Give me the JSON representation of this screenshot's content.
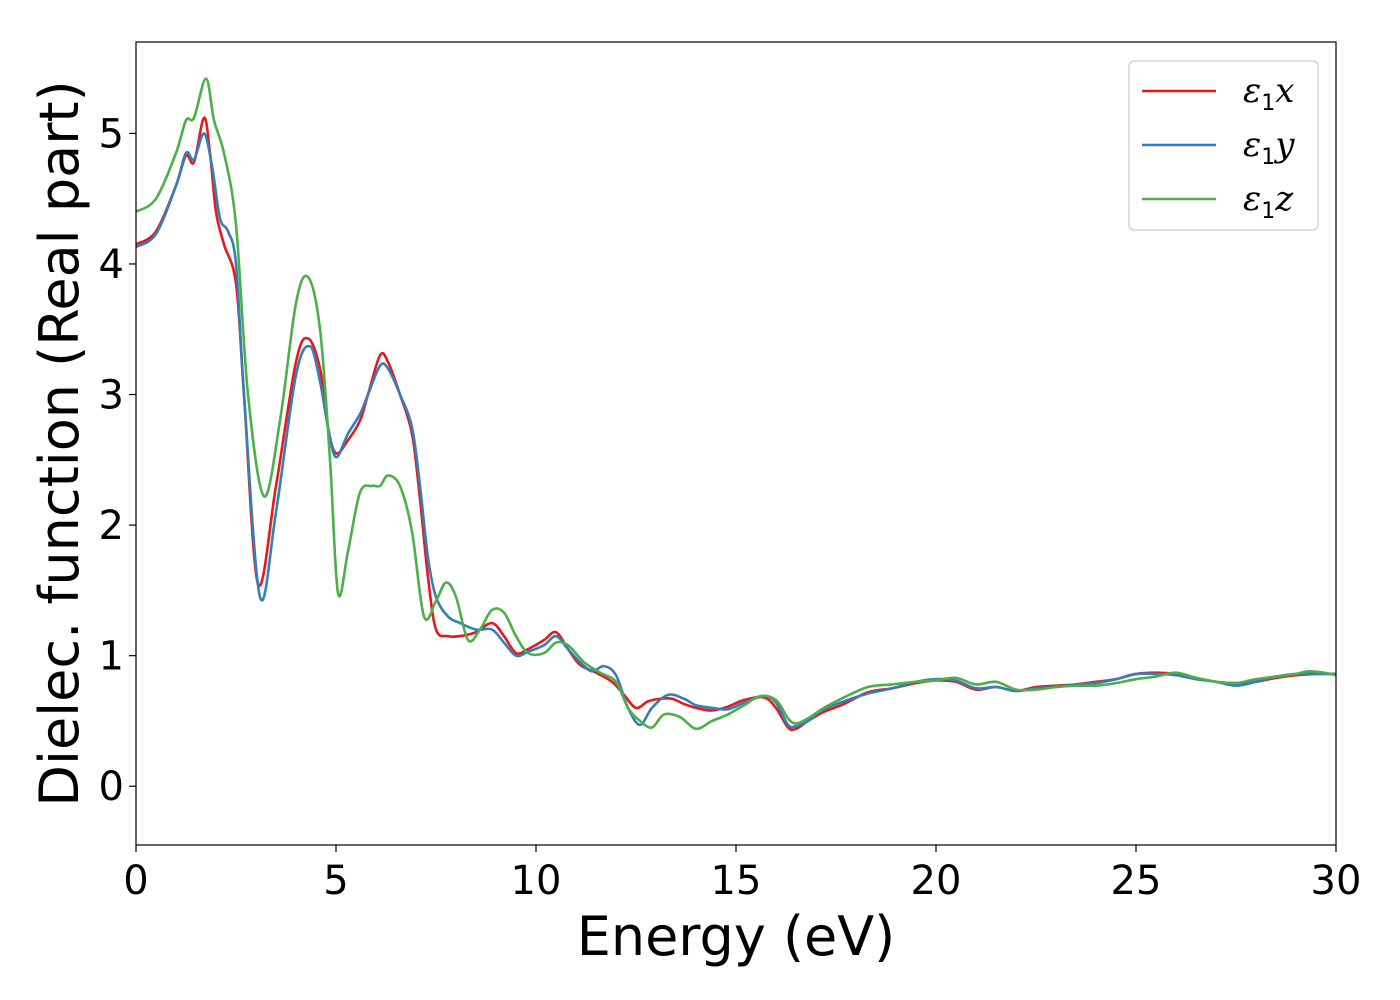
{
  "chart_data": {
    "type": "line",
    "title": "",
    "xlabel": "Energy (eV)",
    "ylabel": "Dielec. function (Real part)",
    "xlim": [
      0,
      30
    ],
    "ylim": [
      -0.45,
      5.7
    ],
    "xticks": [
      0,
      5,
      10,
      15,
      20,
      25,
      30
    ],
    "yticks": [
      0,
      1,
      2,
      3,
      4,
      5
    ],
    "grid": false,
    "legend_position": "top-right",
    "series": [
      {
        "name": "ε1x",
        "legend": {
          "base": "ε",
          "sub": "1",
          "var": "x"
        },
        "color": "#e41a1c",
        "x": [
          0,
          0.5,
          1.0,
          1.25,
          1.45,
          1.7,
          1.85,
          2.0,
          2.2,
          2.5,
          2.7,
          3.05,
          3.5,
          4.0,
          4.3,
          4.6,
          4.8,
          5.0,
          5.3,
          5.6,
          5.8,
          6.1,
          6.3,
          6.6,
          6.9,
          7.1,
          7.3,
          7.5,
          7.8,
          8.1,
          8.5,
          8.9,
          9.2,
          9.5,
          9.8,
          10.2,
          10.5,
          10.8,
          11.1,
          11.5,
          11.9,
          12.2,
          12.5,
          12.8,
          13.1,
          13.4,
          13.7,
          14.0,
          14.4,
          14.8,
          15.2,
          15.7,
          16.0,
          16.3,
          16.5,
          16.8,
          17.2,
          17.7,
          18.3,
          18.9,
          19.5,
          20.0,
          20.5,
          21.0,
          21.5,
          22.0,
          22.5,
          23.0,
          23.5,
          24.0,
          24.5,
          25.0,
          25.5,
          26.0,
          26.5,
          27.0,
          27.5,
          28.0,
          28.5,
          29.0,
          29.5,
          30.0
        ],
        "y": [
          4.15,
          4.25,
          4.6,
          4.83,
          4.78,
          5.12,
          4.85,
          4.4,
          4.15,
          3.85,
          3.0,
          1.55,
          2.3,
          3.25,
          3.43,
          3.2,
          2.75,
          2.55,
          2.65,
          2.8,
          3.0,
          3.3,
          3.25,
          3.0,
          2.7,
          2.2,
          1.6,
          1.2,
          1.15,
          1.15,
          1.18,
          1.25,
          1.15,
          1.02,
          1.05,
          1.12,
          1.18,
          1.05,
          0.93,
          0.87,
          0.8,
          0.7,
          0.6,
          0.65,
          0.67,
          0.67,
          0.63,
          0.6,
          0.58,
          0.61,
          0.66,
          0.68,
          0.6,
          0.45,
          0.44,
          0.5,
          0.57,
          0.63,
          0.72,
          0.75,
          0.79,
          0.81,
          0.8,
          0.74,
          0.76,
          0.73,
          0.76,
          0.77,
          0.78,
          0.8,
          0.82,
          0.86,
          0.87,
          0.86,
          0.83,
          0.8,
          0.79,
          0.8,
          0.83,
          0.85,
          0.86,
          0.86
        ]
      },
      {
        "name": "ε1y",
        "legend": {
          "base": "ε",
          "sub": "1",
          "var": "y"
        },
        "color": "#377eb8",
        "x": [
          0,
          0.5,
          1.0,
          1.25,
          1.45,
          1.7,
          1.9,
          2.1,
          2.3,
          2.5,
          2.7,
          3.1,
          3.5,
          4.0,
          4.35,
          4.6,
          4.8,
          5.0,
          5.3,
          5.6,
          5.8,
          6.1,
          6.3,
          6.6,
          6.9,
          7.1,
          7.3,
          7.5,
          7.8,
          8.1,
          8.5,
          8.9,
          9.2,
          9.5,
          9.8,
          10.2,
          10.5,
          10.8,
          11.1,
          11.4,
          11.7,
          12.0,
          12.3,
          12.6,
          12.9,
          13.3,
          13.7,
          14.0,
          14.4,
          14.8,
          15.2,
          15.7,
          16.0,
          16.3,
          16.5,
          16.8,
          17.2,
          17.7,
          18.3,
          18.9,
          19.5,
          20.0,
          20.5,
          21.0,
          21.5,
          22.0,
          22.5,
          23.0,
          23.5,
          24.0,
          24.5,
          25.0,
          25.5,
          26.0,
          26.5,
          27.0,
          27.5,
          28.0,
          28.5,
          29.0,
          29.5,
          30.0
        ],
        "y": [
          4.13,
          4.23,
          4.6,
          4.85,
          4.8,
          5.0,
          4.75,
          4.35,
          4.25,
          4.0,
          3.0,
          1.45,
          2.1,
          3.15,
          3.37,
          3.1,
          2.75,
          2.52,
          2.7,
          2.85,
          3.0,
          3.22,
          3.2,
          3.0,
          2.75,
          2.3,
          1.75,
          1.45,
          1.3,
          1.25,
          1.2,
          1.2,
          1.1,
          1.0,
          1.03,
          1.08,
          1.15,
          1.05,
          0.95,
          0.88,
          0.92,
          0.85,
          0.6,
          0.47,
          0.6,
          0.7,
          0.67,
          0.62,
          0.6,
          0.59,
          0.64,
          0.69,
          0.64,
          0.47,
          0.46,
          0.5,
          0.59,
          0.65,
          0.71,
          0.75,
          0.8,
          0.82,
          0.81,
          0.75,
          0.76,
          0.73,
          0.75,
          0.76,
          0.78,
          0.79,
          0.82,
          0.86,
          0.86,
          0.85,
          0.82,
          0.8,
          0.77,
          0.8,
          0.84,
          0.86,
          0.86,
          0.86
        ]
      },
      {
        "name": "ε1z",
        "legend": {
          "base": "ε",
          "sub": "1",
          "var": "z"
        },
        "color": "#4daf4a",
        "x": [
          0,
          0.5,
          1.0,
          1.25,
          1.45,
          1.75,
          1.95,
          2.2,
          2.5,
          2.8,
          3.2,
          3.6,
          4.0,
          4.3,
          4.6,
          4.85,
          5.05,
          5.3,
          5.6,
          5.9,
          6.1,
          6.3,
          6.6,
          6.9,
          7.2,
          7.5,
          7.75,
          8.0,
          8.3,
          8.6,
          8.9,
          9.2,
          9.5,
          9.8,
          10.2,
          10.5,
          10.8,
          11.2,
          11.6,
          12.0,
          12.3,
          12.6,
          12.9,
          13.2,
          13.6,
          14.0,
          14.4,
          14.8,
          15.2,
          15.6,
          16.0,
          16.3,
          16.5,
          16.8,
          17.2,
          17.7,
          18.3,
          18.9,
          19.5,
          20.0,
          20.5,
          21.0,
          21.5,
          22.0,
          22.5,
          23.0,
          23.5,
          24.0,
          24.5,
          25.0,
          25.5,
          26.0,
          26.5,
          27.0,
          27.5,
          28.0,
          28.5,
          29.0,
          29.3,
          29.7,
          30.0
        ],
        "y": [
          4.4,
          4.5,
          4.85,
          5.1,
          5.12,
          5.42,
          5.1,
          4.85,
          4.3,
          3.0,
          2.22,
          2.8,
          3.7,
          3.9,
          3.5,
          2.5,
          1.48,
          1.8,
          2.25,
          2.3,
          2.3,
          2.38,
          2.3,
          1.95,
          1.3,
          1.42,
          1.56,
          1.45,
          1.12,
          1.2,
          1.35,
          1.33,
          1.15,
          1.02,
          1.02,
          1.1,
          1.08,
          0.95,
          0.87,
          0.8,
          0.6,
          0.5,
          0.45,
          0.55,
          0.53,
          0.44,
          0.5,
          0.55,
          0.62,
          0.69,
          0.66,
          0.52,
          0.48,
          0.52,
          0.6,
          0.68,
          0.76,
          0.78,
          0.8,
          0.81,
          0.83,
          0.78,
          0.8,
          0.74,
          0.74,
          0.76,
          0.77,
          0.77,
          0.79,
          0.82,
          0.84,
          0.87,
          0.83,
          0.8,
          0.79,
          0.82,
          0.84,
          0.86,
          0.88,
          0.87,
          0.85
        ]
      }
    ]
  }
}
